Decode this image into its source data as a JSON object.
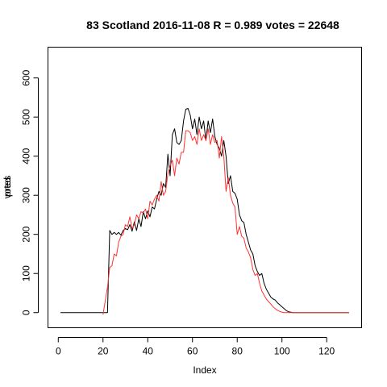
{
  "chart_data": {
    "type": "line",
    "title": "83 Scotland 2016-11-08 R = 0.989 votes = 22648",
    "xlabel": "Index",
    "ylabel_parts": [
      "votes",
      "pred"
    ],
    "xlim": [
      1,
      130
    ],
    "ylim": [
      -10,
      650
    ],
    "x_ticks": [
      0,
      20,
      40,
      60,
      80,
      100,
      120
    ],
    "y_ticks": [
      0,
      100,
      200,
      300,
      400,
      500,
      600
    ],
    "grid": false,
    "legend": "none",
    "series": [
      {
        "color": "#000000",
        "x": [
          1,
          2,
          3,
          4,
          5,
          6,
          7,
          8,
          9,
          10,
          11,
          12,
          13,
          14,
          15,
          16,
          17,
          18,
          19,
          20,
          21,
          22,
          23,
          24,
          25,
          26,
          27,
          28,
          29,
          30,
          31,
          32,
          33,
          34,
          35,
          36,
          37,
          38,
          39,
          40,
          41,
          42,
          43,
          44,
          45,
          46,
          47,
          48,
          49,
          50,
          51,
          52,
          53,
          54,
          55,
          56,
          57,
          58,
          59,
          60,
          61,
          62,
          63,
          64,
          65,
          66,
          67,
          68,
          69,
          70,
          71,
          72,
          73,
          74,
          75,
          76,
          77,
          78,
          79,
          80,
          81,
          82,
          83,
          84,
          85,
          86,
          87,
          88,
          89,
          90,
          91,
          92,
          93,
          94,
          95,
          96,
          97,
          98,
          99,
          100,
          101,
          102,
          103,
          104,
          105,
          106,
          107,
          108,
          109,
          110,
          111,
          112,
          113,
          114,
          115,
          116,
          117,
          118,
          119,
          120,
          121,
          122,
          123,
          124,
          125,
          126,
          127,
          128,
          129,
          130
        ],
        "y": [
          0,
          0,
          0,
          0,
          0,
          0,
          0,
          0,
          0,
          0,
          0,
          0,
          0,
          0,
          0,
          0,
          0,
          0,
          0,
          0,
          0,
          0,
          210,
          200,
          205,
          200,
          205,
          198,
          210,
          215,
          212,
          225,
          208,
          232,
          210,
          240,
          220,
          258,
          240,
          260,
          245,
          270,
          265,
          290,
          310,
          300,
          330,
          320,
          405,
          350,
          455,
          470,
          435,
          430,
          440,
          490,
          520,
          522,
          505,
          470,
          495,
          455,
          500,
          470,
          490,
          440,
          490,
          460,
          495,
          450,
          430,
          420,
          400,
          440,
          400,
          330,
          350,
          310,
          305,
          290,
          250,
          235,
          230,
          200,
          180,
          160,
          150,
          120,
          105,
          95,
          100,
          75,
          60,
          50,
          40,
          35,
          32,
          25,
          20,
          15,
          10,
          5,
          2,
          1,
          0,
          0,
          0,
          0,
          0,
          0,
          0,
          0,
          0,
          0,
          0,
          0,
          0,
          0,
          0,
          0,
          0,
          0,
          0,
          0,
          0,
          0,
          0,
          0,
          0,
          0
        ]
      },
      {
        "color": "#ff3333",
        "x": [
          20,
          21,
          22,
          23,
          24,
          25,
          26,
          27,
          28,
          29,
          30,
          31,
          32,
          33,
          34,
          35,
          36,
          37,
          38,
          39,
          40,
          41,
          42,
          43,
          44,
          45,
          46,
          47,
          48,
          49,
          50,
          51,
          52,
          53,
          54,
          55,
          56,
          57,
          58,
          59,
          60,
          61,
          62,
          63,
          64,
          65,
          66,
          67,
          68,
          69,
          70,
          71,
          72,
          73,
          74,
          75,
          76,
          77,
          78,
          79,
          80,
          81,
          82,
          83,
          84,
          85,
          86,
          87,
          88,
          89,
          90,
          91,
          92,
          93,
          94,
          95,
          96,
          97,
          98,
          99,
          100,
          101,
          102,
          103,
          104,
          105,
          106,
          107,
          108,
          109,
          110,
          111,
          112,
          113,
          114,
          115,
          116,
          117,
          118,
          119,
          120,
          121,
          122,
          123,
          124,
          125,
          126,
          127,
          128,
          129,
          130
        ],
        "y": [
          -5,
          30,
          65,
          115,
          120,
          150,
          145,
          180,
          195,
          200,
          225,
          220,
          245,
          215,
          225,
          250,
          240,
          258,
          255,
          265,
          240,
          285,
          275,
          290,
          300,
          285,
          335,
          300,
          310,
          355,
          375,
          390,
          350,
          395,
          380,
          410,
          410,
          465,
          465,
          460,
          440,
          450,
          430,
          470,
          440,
          455,
          440,
          470,
          430,
          455,
          435,
          440,
          395,
          450,
          400,
          310,
          345,
          300,
          280,
          270,
          200,
          220,
          195,
          190,
          165,
          155,
          140,
          110,
          95,
          100,
          75,
          55,
          45,
          35,
          28,
          22,
          15,
          10,
          6,
          3,
          1,
          0,
          0,
          0,
          0,
          0,
          0,
          0,
          0,
          0,
          0,
          0,
          0,
          0,
          0,
          0,
          0,
          0,
          0,
          0,
          0,
          0,
          0,
          0,
          0,
          0,
          0,
          0,
          0,
          0,
          0
        ]
      }
    ]
  }
}
